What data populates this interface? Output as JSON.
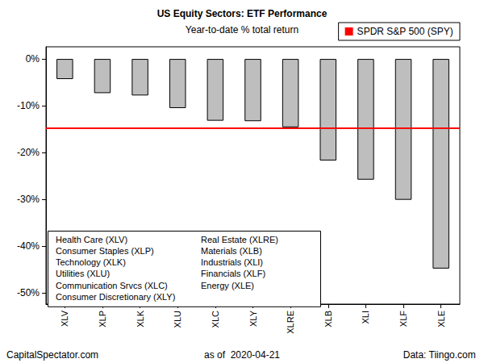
{
  "chart_data": {
    "type": "bar",
    "title": "US Equity Sectors: ETF Performance",
    "subtitle": "Year-to-date % total return",
    "categories": [
      "XLV",
      "XLP",
      "XLK",
      "XLU",
      "XLC",
      "XLY",
      "XLRE",
      "XLB",
      "XLI",
      "XLF",
      "XLE"
    ],
    "values": [
      -4.3,
      -7.3,
      -7.8,
      -10.5,
      -13.2,
      -13.3,
      -14.6,
      -21.7,
      -25.8,
      -30.1,
      -44.8
    ],
    "color": "#bebebe",
    "ylim": [
      -52.4,
      2.6
    ],
    "yticks": [
      {
        "value": 0,
        "label": "0%"
      },
      {
        "value": -10,
        "label": "-10%"
      },
      {
        "value": -20,
        "label": "-20%"
      },
      {
        "value": -30,
        "label": "-30%"
      },
      {
        "value": -40,
        "label": "-40%"
      },
      {
        "value": -50,
        "label": "-50%"
      }
    ],
    "grid": false,
    "legend": "upper right",
    "reference_lines": [
      {
        "name": "SPDR S&P 500 (SPY)",
        "value": -14.7,
        "color": "#ff0000"
      }
    ],
    "annotations": [
      "Health Care (XLV)",
      "Consumer Staples (XLP)",
      "Technology (XLK)",
      "Utilities (XLU)",
      "Communication Srvcs (XLC)",
      "Consumer Discretionary (XLY)",
      "Real Estate (XLRE)",
      "Materials (XLB)",
      "Industrials (XLI)",
      "Financials (XLF)",
      "Energy (XLE)"
    ],
    "footer": {
      "left": "CapitalSpectator.com",
      "center": "as of  2020-04-21",
      "right": "Data: Tiingo.com"
    }
  }
}
